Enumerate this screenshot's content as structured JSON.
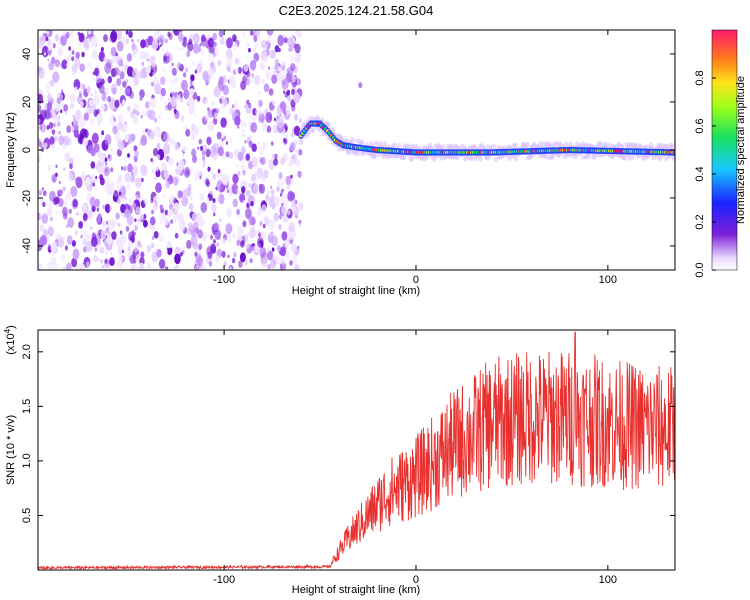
{
  "chart_data": [
    {
      "type": "heatmap",
      "title": "C2E3.2025.124.21.58.G04",
      "xlabel": "Height of straight line (km)",
      "ylabel": "Frequency (Hz)",
      "xlim": [
        -197,
        135
      ],
      "ylim": [
        -50,
        50
      ],
      "xticks": [
        -100,
        0,
        100
      ],
      "yticks": [
        -40,
        -20,
        0,
        20,
        40
      ],
      "colorbar": {
        "label": "Normalized spectral amplitude",
        "range": [
          0,
          1
        ],
        "ticks": [
          0.0,
          0.2,
          0.4,
          0.6,
          0.8
        ]
      },
      "noise_region_x": [
        -197,
        -60
      ],
      "signal_track": [
        {
          "x": -60,
          "f": 6
        },
        {
          "x": -55,
          "f": 11
        },
        {
          "x": -50,
          "f": 11
        },
        {
          "x": -46,
          "f": 8
        },
        {
          "x": -42,
          "f": 4
        },
        {
          "x": -38,
          "f": 2
        },
        {
          "x": -30,
          "f": 1
        },
        {
          "x": -20,
          "f": 0
        },
        {
          "x": 0,
          "f": -1
        },
        {
          "x": 40,
          "f": -1
        },
        {
          "x": 80,
          "f": 0
        },
        {
          "x": 135,
          "f": -1
        }
      ],
      "isolated_feature": {
        "x": -29,
        "f": 27
      },
      "grid": false
    },
    {
      "type": "line",
      "xlabel": "Height of straight line (km)",
      "ylabel": "SNR (10 * v/v)",
      "ylabel_exponent": "(x10^4)",
      "xlim": [
        -197,
        135
      ],
      "ylim": [
        0,
        2.2
      ],
      "xticks": [
        -100,
        0,
        100
      ],
      "yticks": [
        0.5,
        1.0,
        1.5,
        2.0
      ],
      "color": "#e8312f",
      "trend": [
        {
          "x": -197,
          "y": 0.02
        },
        {
          "x": -45,
          "y": 0.03
        },
        {
          "x": -42,
          "y": 0.12
        },
        {
          "x": -35,
          "y": 0.3
        },
        {
          "x": -25,
          "y": 0.5
        },
        {
          "x": -15,
          "y": 0.7
        },
        {
          "x": 0,
          "y": 0.85
        },
        {
          "x": 10,
          "y": 1.0
        },
        {
          "x": 20,
          "y": 1.15
        },
        {
          "x": 30,
          "y": 1.25
        },
        {
          "x": 40,
          "y": 1.35
        },
        {
          "x": 60,
          "y": 1.4
        },
        {
          "x": 80,
          "y": 1.4
        },
        {
          "x": 100,
          "y": 1.35
        },
        {
          "x": 120,
          "y": 1.3
        },
        {
          "x": 135,
          "y": 1.3
        }
      ],
      "peak": {
        "x": 83,
        "y": 2.18
      },
      "grid": false
    }
  ]
}
